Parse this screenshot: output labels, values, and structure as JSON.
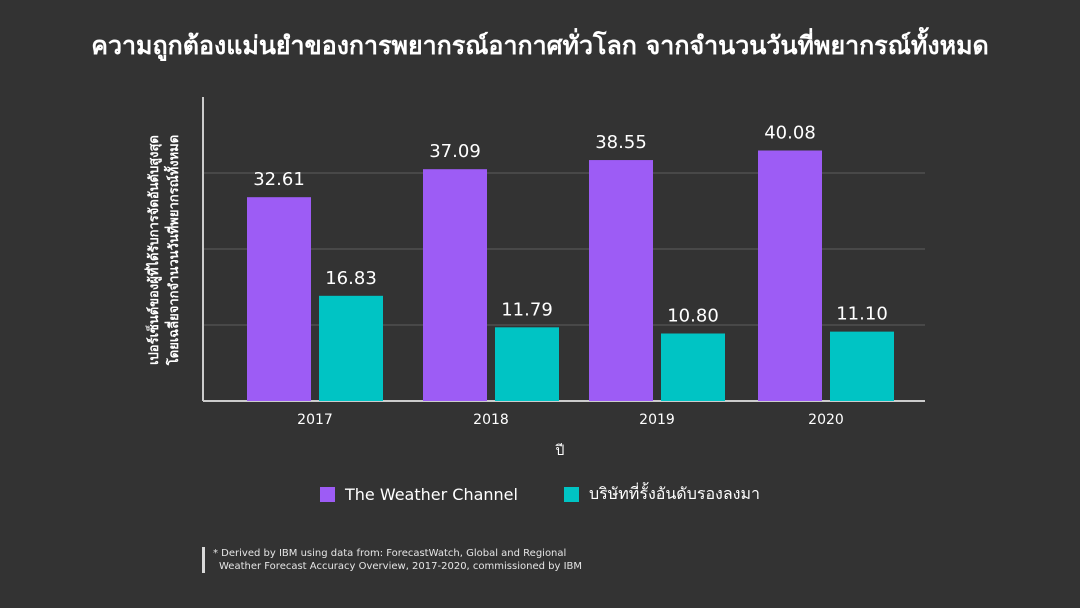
{
  "title": "ความถูกต้องแม่นยำของการพยากรณ์อากาศทั่วโลก จากจำนวนวันที่พยากรณ์ทั้งหมด",
  "chart_data": {
    "type": "bar",
    "categories": [
      "2017",
      "2018",
      "2019",
      "2020"
    ],
    "series": [
      {
        "name": "The Weather Channel",
        "values": [
          32.61,
          37.09,
          38.55,
          40.08
        ],
        "labels": [
          "32.61",
          "37.09",
          "38.55",
          "40.08"
        ],
        "color": "#9d5cf5"
      },
      {
        "name": "บริษัทที่รั้งอันดับรองลงมา",
        "values": [
          16.83,
          11.79,
          10.8,
          11.1
        ],
        "labels": [
          "16.83",
          "11.79",
          "10.80",
          "11.10"
        ],
        "color": "#00c4c4"
      }
    ],
    "xlabel": "ปี",
    "ylabel_lines": [
      "เปอร์เซ็นต์ของผู้ที่ได้รับการจัดอันดับสูงสุด",
      "โดยเฉลี่ยจากจำนวนวันที่พยากรณ์ทั้งหมด"
    ],
    "ylim": [
      0,
      45
    ],
    "grid": true,
    "legend_position": "bottom"
  },
  "footnote": {
    "line1": "* Derived by IBM using data from: ForecastWatch, Global and Regional",
    "line2": "Weather Forecast Accuracy Overview, 2017-2020, commissioned by IBM"
  },
  "colors": {
    "background": "#333333",
    "grid": "#555555",
    "axis": "#cccccc"
  }
}
